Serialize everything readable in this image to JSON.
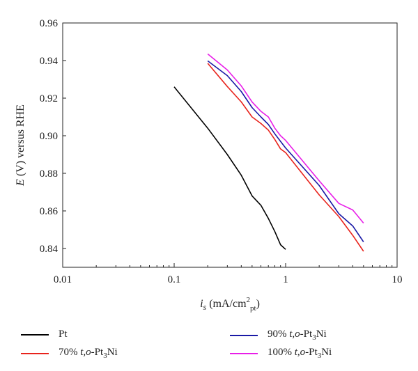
{
  "chart_data": {
    "type": "line",
    "x_scale": "log",
    "xlim": [
      0.01,
      10
    ],
    "ylim": [
      0.83,
      0.96
    ],
    "x_ticks": [
      "0.01",
      "0.1",
      "1",
      "10"
    ],
    "y_ticks": [
      "0.84",
      "0.86",
      "0.88",
      "0.90",
      "0.92",
      "0.94",
      "0.96"
    ],
    "xlabel": {
      "var": "i",
      "sub": "s",
      "rest": " (mA/cm",
      "sup": "2",
      "sub2": "pt",
      "close": ")"
    },
    "ylabel": {
      "var": "E",
      "rest": " (V) versus RHE"
    },
    "grid": false,
    "legend_position": "bottom",
    "series": [
      {
        "name": "Pt",
        "prefix": "",
        "italic": "",
        "formula": "",
        "color": "#000000",
        "x": [
          0.1,
          0.2,
          0.3,
          0.4,
          0.5,
          0.6,
          0.7,
          0.8,
          0.9,
          1.0
        ],
        "y": [
          0.926,
          0.904,
          0.89,
          0.879,
          0.868,
          0.863,
          0.856,
          0.849,
          0.842,
          0.8395
        ]
      },
      {
        "name": "70% t,o-Pt3Ni",
        "prefix": "70% ",
        "italic": "t,o",
        "formula": "-Pt|3|Ni",
        "color": "#e8231c",
        "x": [
          0.2,
          0.3,
          0.4,
          0.5,
          0.6,
          0.7,
          0.8,
          0.9,
          1.0,
          2.0,
          3.0,
          4.0,
          5.0
        ],
        "y": [
          0.9385,
          0.9262,
          0.918,
          0.91,
          0.9065,
          0.903,
          0.898,
          0.893,
          0.891,
          0.8685,
          0.857,
          0.847,
          0.8385
        ]
      },
      {
        "name": "90% t,o-Pt3Ni",
        "prefix": "90% ",
        "italic": "t,o",
        "formula": "-Pt|3|Ni",
        "color": "#1a1aa6",
        "x": [
          0.2,
          0.3,
          0.4,
          0.5,
          0.6,
          0.7,
          0.8,
          0.9,
          1.0,
          2.0,
          3.0,
          4.0,
          5.0
        ],
        "y": [
          0.9398,
          0.932,
          0.9235,
          0.915,
          0.91,
          0.906,
          0.901,
          0.897,
          0.8935,
          0.8735,
          0.8585,
          0.852,
          0.8435
        ]
      },
      {
        "name": "100% t,o-Pt3Ni",
        "prefix": "100% ",
        "italic": "t,o",
        "formula": "-Pt|3|Ni",
        "color": "#e81ee8",
        "x": [
          0.2,
          0.3,
          0.4,
          0.5,
          0.6,
          0.7,
          0.8,
          0.9,
          1.0,
          2.0,
          3.0,
          4.0,
          5.0
        ],
        "y": [
          0.9435,
          0.935,
          0.9265,
          0.918,
          0.913,
          0.91,
          0.904,
          0.9,
          0.8975,
          0.876,
          0.864,
          0.8605,
          0.8535
        ]
      }
    ]
  }
}
